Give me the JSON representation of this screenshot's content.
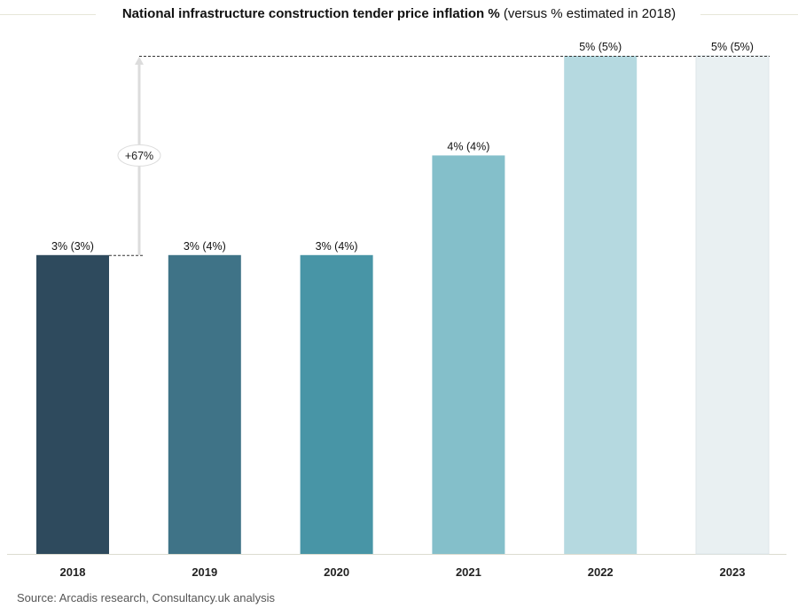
{
  "title": {
    "main": "National infrastructure construction tender price inflation %",
    "sub": "(versus % estimated in 2018)"
  },
  "source": "Source: Arcadis research, Consultancy.uk analysis",
  "annotation": "+67%",
  "colors": [
    "#2e4a5d",
    "#3f7387",
    "#4895a6",
    "#84bfca",
    "#b5d9e0",
    "#e9f0f2"
  ],
  "chart_data": {
    "type": "bar",
    "categories": [
      "2018",
      "2019",
      "2020",
      "2021",
      "2022",
      "2023"
    ],
    "values": [
      3,
      3,
      3,
      4,
      5,
      5
    ],
    "labels": [
      "3% (3%)",
      "3% (4%)",
      "3% (4%)",
      "4% (4%)",
      "5% (5%)",
      "5% (5%)"
    ],
    "ylim": [
      0,
      5
    ],
    "grid": false,
    "legend": "none"
  }
}
